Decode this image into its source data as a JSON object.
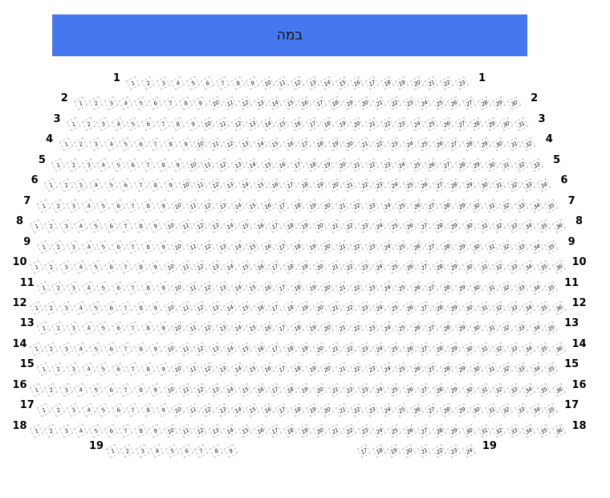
{
  "stage": {
    "label": "במה",
    "color": "#4677ef"
  },
  "rows": [
    {
      "label": "1",
      "sections": [
        [
          1,
          23
        ]
      ]
    },
    {
      "label": "2",
      "sections": [
        [
          1,
          30
        ]
      ]
    },
    {
      "label": "3",
      "sections": [
        [
          1,
          31
        ]
      ]
    },
    {
      "label": "4",
      "sections": [
        [
          1,
          32
        ]
      ]
    },
    {
      "label": "5",
      "sections": [
        [
          1,
          33
        ]
      ]
    },
    {
      "label": "6",
      "sections": [
        [
          1,
          34
        ]
      ]
    },
    {
      "label": "7",
      "sections": [
        [
          1,
          35
        ]
      ]
    },
    {
      "label": "8",
      "sections": [
        [
          1,
          36
        ]
      ]
    },
    {
      "label": "9",
      "sections": [
        [
          1,
          35
        ]
      ]
    },
    {
      "label": "10",
      "sections": [
        [
          1,
          36
        ]
      ]
    },
    {
      "label": "11",
      "sections": [
        [
          1,
          35
        ]
      ]
    },
    {
      "label": "12",
      "sections": [
        [
          1,
          36
        ]
      ]
    },
    {
      "label": "13",
      "sections": [
        [
          1,
          35
        ]
      ]
    },
    {
      "label": "14",
      "sections": [
        [
          1,
          36
        ]
      ]
    },
    {
      "label": "15",
      "sections": [
        [
          1,
          35
        ]
      ]
    },
    {
      "label": "16",
      "sections": [
        [
          1,
          36
        ]
      ]
    },
    {
      "label": "17",
      "sections": [
        [
          1,
          35
        ]
      ]
    },
    {
      "label": "18",
      "sections": [
        [
          1,
          36
        ]
      ]
    },
    {
      "label": "19",
      "sections": [
        [
          1,
          9
        ],
        [
          17,
          24
        ]
      ]
    }
  ]
}
